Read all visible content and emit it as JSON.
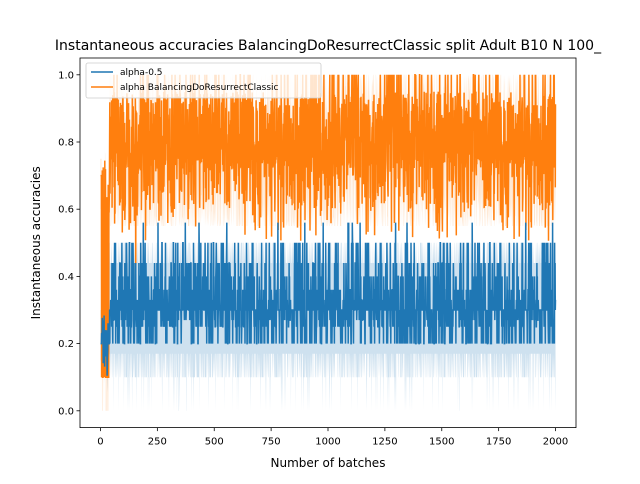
{
  "chart_data": {
    "type": "line",
    "title": "Instantaneous accuracies BalancingDoResurrectClassic split Adult B10 N 100_",
    "xlabel": "Number of batches",
    "ylabel": "Instantaneous accuracies",
    "xlim": [
      -90,
      2090
    ],
    "ylim": [
      -0.05,
      1.05
    ],
    "x_ticks": [
      0,
      250,
      500,
      750,
      1000,
      1250,
      1500,
      1750,
      2000
    ],
    "x_tick_labels": [
      "0",
      "250",
      "500",
      "750",
      "1000",
      "1250",
      "1500",
      "1750",
      "2000"
    ],
    "y_ticks": [
      0.0,
      0.2,
      0.4,
      0.6,
      0.8,
      1.0
    ],
    "y_tick_labels": [
      "0.0",
      "0.2",
      "0.4",
      "0.6",
      "0.8",
      "1.0"
    ],
    "grid": false,
    "legend_position": "upper-left",
    "series": [
      {
        "name": "alpha-0.5",
        "color": "#1f77b4",
        "band_color": "#1f77b4",
        "summary": {
          "x_range": [
            0,
            2000
          ],
          "typical_range": [
            0.2,
            0.5
          ],
          "typical_center": 0.32,
          "band_range": [
            0.0,
            0.5
          ]
        },
        "values_sample": [
          {
            "x": 0,
            "y": 0.2
          },
          {
            "x": 10,
            "y": 0.1
          },
          {
            "x": 25,
            "y": 0.1
          },
          {
            "x": 40,
            "y": 0.3
          },
          {
            "x": 60,
            "y": 0.2
          },
          {
            "x": 100,
            "y": 0.4
          },
          {
            "x": 200,
            "y": 0.3
          },
          {
            "x": 400,
            "y": 0.33
          },
          {
            "x": 600,
            "y": 0.3
          },
          {
            "x": 800,
            "y": 0.35
          },
          {
            "x": 1000,
            "y": 0.3
          },
          {
            "x": 1200,
            "y": 0.33
          },
          {
            "x": 1400,
            "y": 0.3
          },
          {
            "x": 1600,
            "y": 0.33
          },
          {
            "x": 1800,
            "y": 0.3
          },
          {
            "x": 2000,
            "y": 0.3
          }
        ]
      },
      {
        "name": "alpha BalancingDoResurrectClassic",
        "color": "#ff7f0e",
        "band_color": "#ff7f0e",
        "summary": {
          "x_range": [
            0,
            2000
          ],
          "typical_range": [
            0.6,
            1.0
          ],
          "typical_center": 0.82,
          "band_range": [
            0.5,
            1.0
          ]
        },
        "values_sample": [
          {
            "x": 0,
            "y": 0.7
          },
          {
            "x": 10,
            "y": 0.1
          },
          {
            "x": 25,
            "y": 0.75
          },
          {
            "x": 40,
            "y": 0.85
          },
          {
            "x": 100,
            "y": 0.8
          },
          {
            "x": 155,
            "y": 0.32
          },
          {
            "x": 200,
            "y": 0.85
          },
          {
            "x": 400,
            "y": 0.82
          },
          {
            "x": 600,
            "y": 0.8
          },
          {
            "x": 800,
            "y": 0.85
          },
          {
            "x": 1000,
            "y": 0.8
          },
          {
            "x": 1200,
            "y": 0.82
          },
          {
            "x": 1400,
            "y": 0.85
          },
          {
            "x": 1600,
            "y": 0.8
          },
          {
            "x": 1800,
            "y": 0.85
          },
          {
            "x": 2000,
            "y": 0.8
          }
        ]
      }
    ]
  }
}
